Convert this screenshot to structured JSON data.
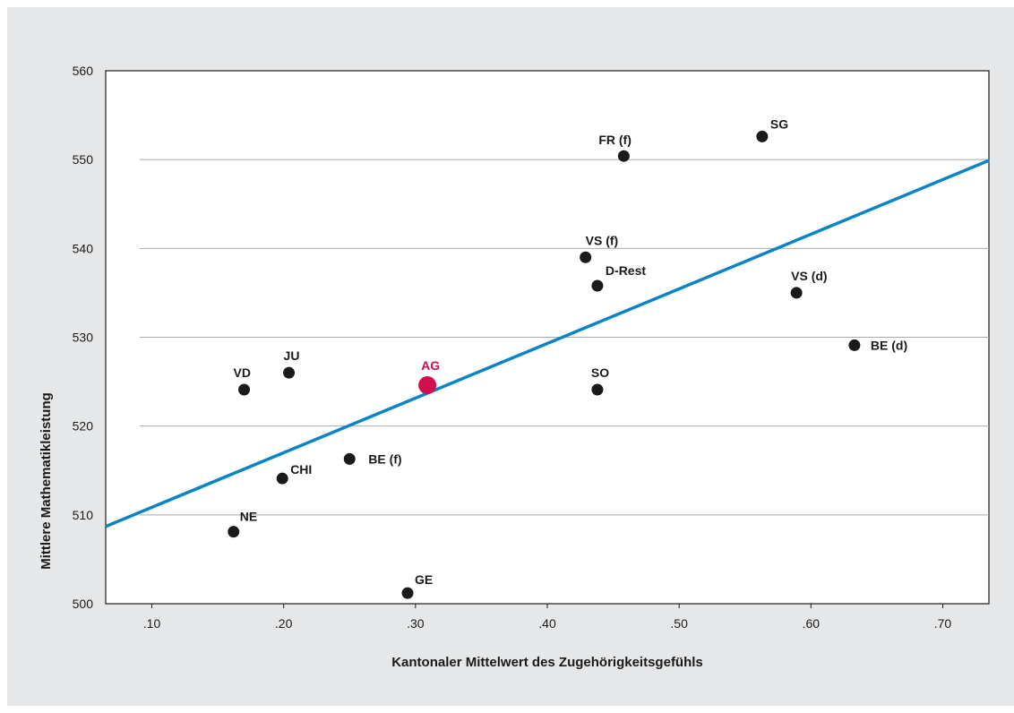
{
  "chart_data": {
    "type": "scatter",
    "xlabel": "Kantonaler Mittelwert des Zugehörigkeitsgefühls",
    "ylabel": "Mittlere Mathematikleistung",
    "xlim": [
      0.065,
      0.735
    ],
    "ylim": [
      500,
      560
    ],
    "xticks": [
      0.1,
      0.2,
      0.3,
      0.4,
      0.5,
      0.6,
      0.7
    ],
    "xtick_labels": [
      ".10",
      ".20",
      ".30",
      ".40",
      ".50",
      ".60",
      ".70"
    ],
    "yticks": [
      500,
      510,
      520,
      530,
      540,
      550,
      560
    ],
    "ytick_labels": [
      "500",
      "510",
      "520",
      "530",
      "540",
      "550",
      "560"
    ],
    "grid": "horizontal",
    "points": [
      {
        "label": "SG",
        "x": 0.563,
        "y": 552.6,
        "highlight": false
      },
      {
        "label": "FR (f)",
        "x": 0.458,
        "y": 550.4,
        "highlight": false
      },
      {
        "label": "VS (f)",
        "x": 0.429,
        "y": 539.0,
        "highlight": false
      },
      {
        "label": "D-Rest",
        "x": 0.438,
        "y": 535.8,
        "highlight": false
      },
      {
        "label": "VS (d)",
        "x": 0.589,
        "y": 535.0,
        "highlight": false
      },
      {
        "label": "BE (d)",
        "x": 0.633,
        "y": 529.1,
        "highlight": false
      },
      {
        "label": "JU",
        "x": 0.204,
        "y": 526.0,
        "highlight": false
      },
      {
        "label": "VD",
        "x": 0.17,
        "y": 524.1,
        "highlight": false
      },
      {
        "label": "AG",
        "x": 0.309,
        "y": 524.6,
        "highlight": true
      },
      {
        "label": "SO",
        "x": 0.438,
        "y": 524.1,
        "highlight": false
      },
      {
        "label": "BE (f)",
        "x": 0.25,
        "y": 516.3,
        "highlight": false
      },
      {
        "label": "CHI",
        "x": 0.199,
        "y": 514.1,
        "highlight": false
      },
      {
        "label": "NE",
        "x": 0.162,
        "y": 508.1,
        "highlight": false
      },
      {
        "label": "GE",
        "x": 0.294,
        "y": 501.2,
        "highlight": false
      }
    ],
    "trendline": {
      "x": [
        0.065,
        0.735
      ],
      "y": [
        508.7,
        549.9
      ]
    },
    "colors": {
      "point": "#1a1a1a",
      "highlight": "#d0104c",
      "trendline": "#0a84c6",
      "grid": "#a9a9a9",
      "background": "#e6e7e8",
      "plot": "#ffffff"
    }
  }
}
